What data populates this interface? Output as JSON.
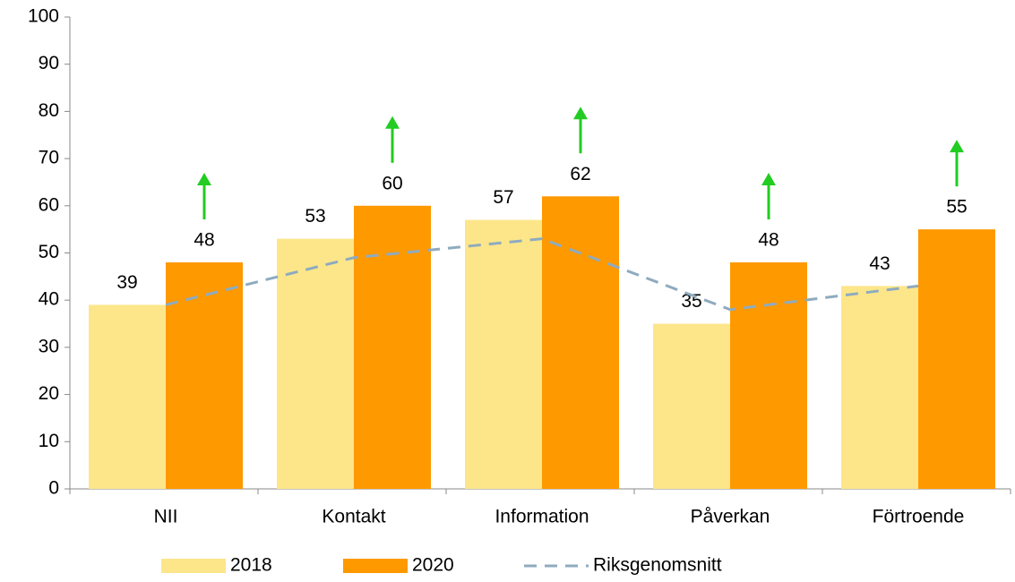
{
  "chart_data": {
    "type": "bar",
    "categories": [
      "NII",
      "Kontakt",
      "Information",
      "Påverkan",
      "Förtroende"
    ],
    "series": [
      {
        "name": "2018",
        "color": "#fde68a",
        "values": [
          39,
          53,
          57,
          35,
          43
        ]
      },
      {
        "name": "2020",
        "color": "#ff9900",
        "values": [
          48,
          60,
          62,
          48,
          55
        ]
      },
      {
        "name": "Riksgenomsnitt",
        "type": "line",
        "dash": true,
        "color": "#8eabbf",
        "values": [
          39,
          49,
          53,
          38,
          43
        ]
      }
    ],
    "ylim": [
      0,
      100
    ],
    "yticks": [
      0,
      10,
      20,
      30,
      40,
      50,
      60,
      70,
      80,
      90,
      100
    ],
    "arrow_color": "#22cc22",
    "legend": "bottom"
  }
}
